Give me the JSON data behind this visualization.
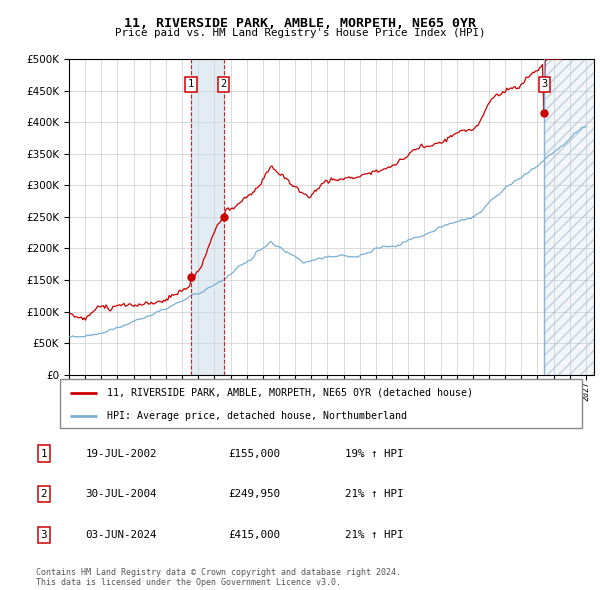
{
  "title": "11, RIVERSIDE PARK, AMBLE, MORPETH, NE65 0YR",
  "subtitle": "Price paid vs. HM Land Registry's House Price Index (HPI)",
  "legend_line1": "11, RIVERSIDE PARK, AMBLE, MORPETH, NE65 0YR (detached house)",
  "legend_line2": "HPI: Average price, detached house, Northumberland",
  "footnote1": "Contains HM Land Registry data © Crown copyright and database right 2024.",
  "footnote2": "This data is licensed under the Open Government Licence v3.0.",
  "transactions": [
    {
      "label": "1",
      "date": "19-JUL-2002",
      "price": "£155,000",
      "hpi": "19% ↑ HPI"
    },
    {
      "label": "2",
      "date": "30-JUL-2004",
      "price": "£249,950",
      "hpi": "21% ↑ HPI"
    },
    {
      "label": "3",
      "date": "03-JUN-2024",
      "price": "£415,000",
      "hpi": "21% ↑ HPI"
    }
  ],
  "sale_dates_num": [
    2002.54,
    2004.58,
    2024.42
  ],
  "sale_prices": [
    155000,
    249950,
    415000
  ],
  "ylim": [
    0,
    500000
  ],
  "yticks": [
    0,
    50000,
    100000,
    150000,
    200000,
    250000,
    300000,
    350000,
    400000,
    450000,
    500000
  ],
  "xlim_start": 1995.0,
  "xlim_end": 2027.5,
  "hpi_color": "#7bafd4",
  "price_color": "#cc0000",
  "vertical_line_color": "#cc0000",
  "background_color": "#ffffff"
}
